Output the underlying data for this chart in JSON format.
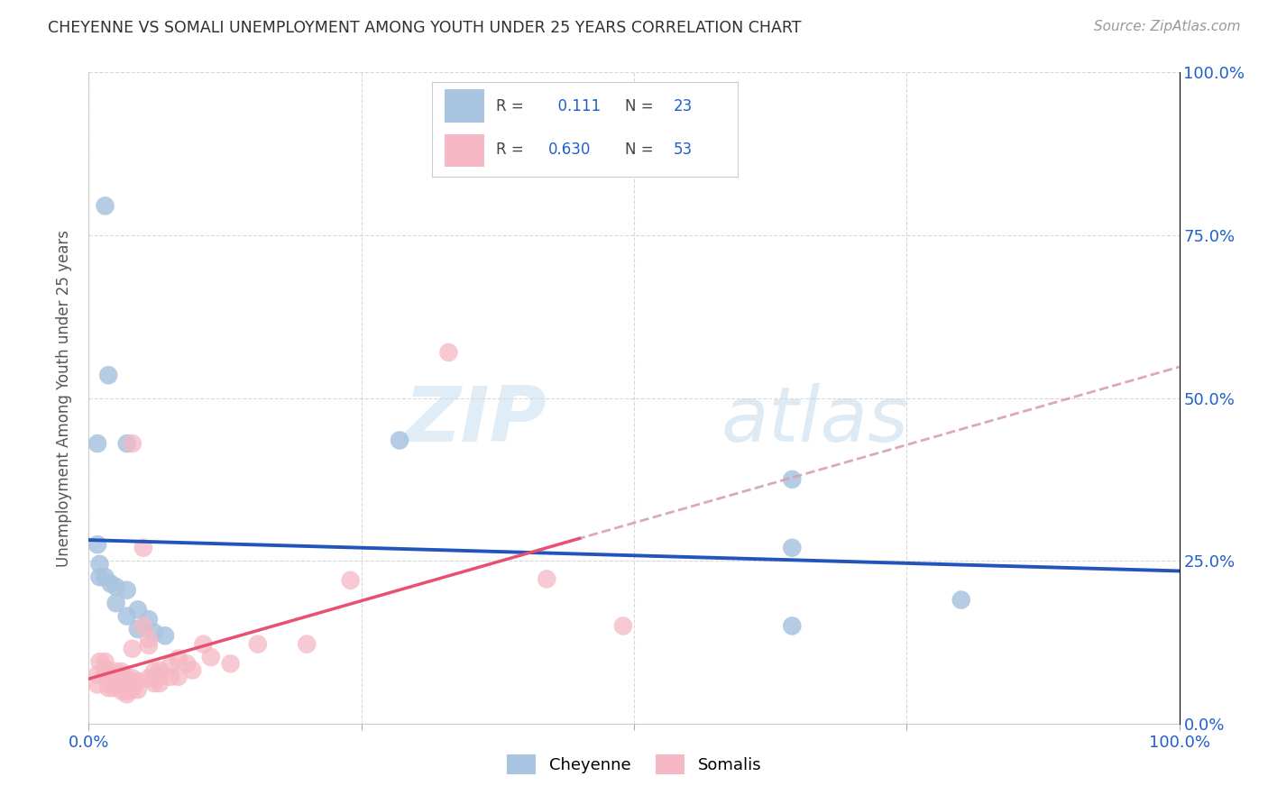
{
  "title": "CHEYENNE VS SOMALI UNEMPLOYMENT AMONG YOUTH UNDER 25 YEARS CORRELATION CHART",
  "source": "Source: ZipAtlas.com",
  "ylabel": "Unemployment Among Youth under 25 years",
  "xlim": [
    0,
    1
  ],
  "ylim": [
    0,
    1
  ],
  "xtick_positions": [
    0,
    0.25,
    0.5,
    0.75,
    1.0
  ],
  "ytick_positions": [
    0,
    0.25,
    0.5,
    0.75,
    1.0
  ],
  "xtick_labels_bottom": [
    "0.0%",
    "",
    "",
    "",
    "100.0%"
  ],
  "ytick_labels_right": [
    "0.0%",
    "25.0%",
    "50.0%",
    "75.0%",
    "100.0%"
  ],
  "cheyenne_color": "#a8c4e0",
  "somali_color": "#f5b8c4",
  "cheyenne_line_color": "#2255bb",
  "somali_line_color": "#e85070",
  "somali_dash_color": "#d8a0b0",
  "R_cheyenne": 0.111,
  "N_cheyenne": 23,
  "R_somali": 0.63,
  "N_somali": 53,
  "cheyenne_points": [
    [
      0.015,
      0.795
    ],
    [
      0.018,
      0.535
    ],
    [
      0.008,
      0.43
    ],
    [
      0.035,
      0.43
    ],
    [
      0.285,
      0.435
    ],
    [
      0.645,
      0.375
    ],
    [
      0.645,
      0.27
    ],
    [
      0.8,
      0.19
    ],
    [
      0.008,
      0.275
    ],
    [
      0.01,
      0.245
    ],
    [
      0.01,
      0.225
    ],
    [
      0.015,
      0.225
    ],
    [
      0.02,
      0.215
    ],
    [
      0.025,
      0.21
    ],
    [
      0.025,
      0.185
    ],
    [
      0.035,
      0.205
    ],
    [
      0.035,
      0.165
    ],
    [
      0.045,
      0.175
    ],
    [
      0.045,
      0.145
    ],
    [
      0.055,
      0.16
    ],
    [
      0.06,
      0.14
    ],
    [
      0.07,
      0.135
    ],
    [
      0.645,
      0.15
    ]
  ],
  "somali_points": [
    [
      0.33,
      0.57
    ],
    [
      0.04,
      0.43
    ],
    [
      0.008,
      0.06
    ],
    [
      0.008,
      0.075
    ],
    [
      0.01,
      0.095
    ],
    [
      0.015,
      0.095
    ],
    [
      0.015,
      0.085
    ],
    [
      0.015,
      0.075
    ],
    [
      0.018,
      0.07
    ],
    [
      0.018,
      0.055
    ],
    [
      0.022,
      0.06
    ],
    [
      0.022,
      0.055
    ],
    [
      0.025,
      0.065
    ],
    [
      0.025,
      0.08
    ],
    [
      0.03,
      0.08
    ],
    [
      0.03,
      0.07
    ],
    [
      0.03,
      0.06
    ],
    [
      0.03,
      0.05
    ],
    [
      0.035,
      0.06
    ],
    [
      0.035,
      0.05
    ],
    [
      0.035,
      0.045
    ],
    [
      0.035,
      0.07
    ],
    [
      0.04,
      0.07
    ],
    [
      0.04,
      0.06
    ],
    [
      0.04,
      0.052
    ],
    [
      0.04,
      0.115
    ],
    [
      0.045,
      0.065
    ],
    [
      0.045,
      0.052
    ],
    [
      0.05,
      0.15
    ],
    [
      0.05,
      0.27
    ],
    [
      0.055,
      0.13
    ],
    [
      0.055,
      0.12
    ],
    [
      0.055,
      0.07
    ],
    [
      0.06,
      0.08
    ],
    [
      0.06,
      0.07
    ],
    [
      0.06,
      0.062
    ],
    [
      0.065,
      0.082
    ],
    [
      0.065,
      0.072
    ],
    [
      0.065,
      0.062
    ],
    [
      0.075,
      0.09
    ],
    [
      0.075,
      0.072
    ],
    [
      0.082,
      0.1
    ],
    [
      0.082,
      0.072
    ],
    [
      0.09,
      0.092
    ],
    [
      0.095,
      0.082
    ],
    [
      0.105,
      0.122
    ],
    [
      0.112,
      0.102
    ],
    [
      0.13,
      0.092
    ],
    [
      0.155,
      0.122
    ],
    [
      0.2,
      0.122
    ],
    [
      0.24,
      0.22
    ],
    [
      0.42,
      0.222
    ],
    [
      0.49,
      0.15
    ]
  ],
  "watermark_zip": "ZIP",
  "watermark_atlas": "atlas",
  "background_color": "#ffffff",
  "grid_color": "#c8c8c8",
  "title_color": "#303030",
  "axis_label_color": "#555555",
  "tick_color": "#2060cc"
}
